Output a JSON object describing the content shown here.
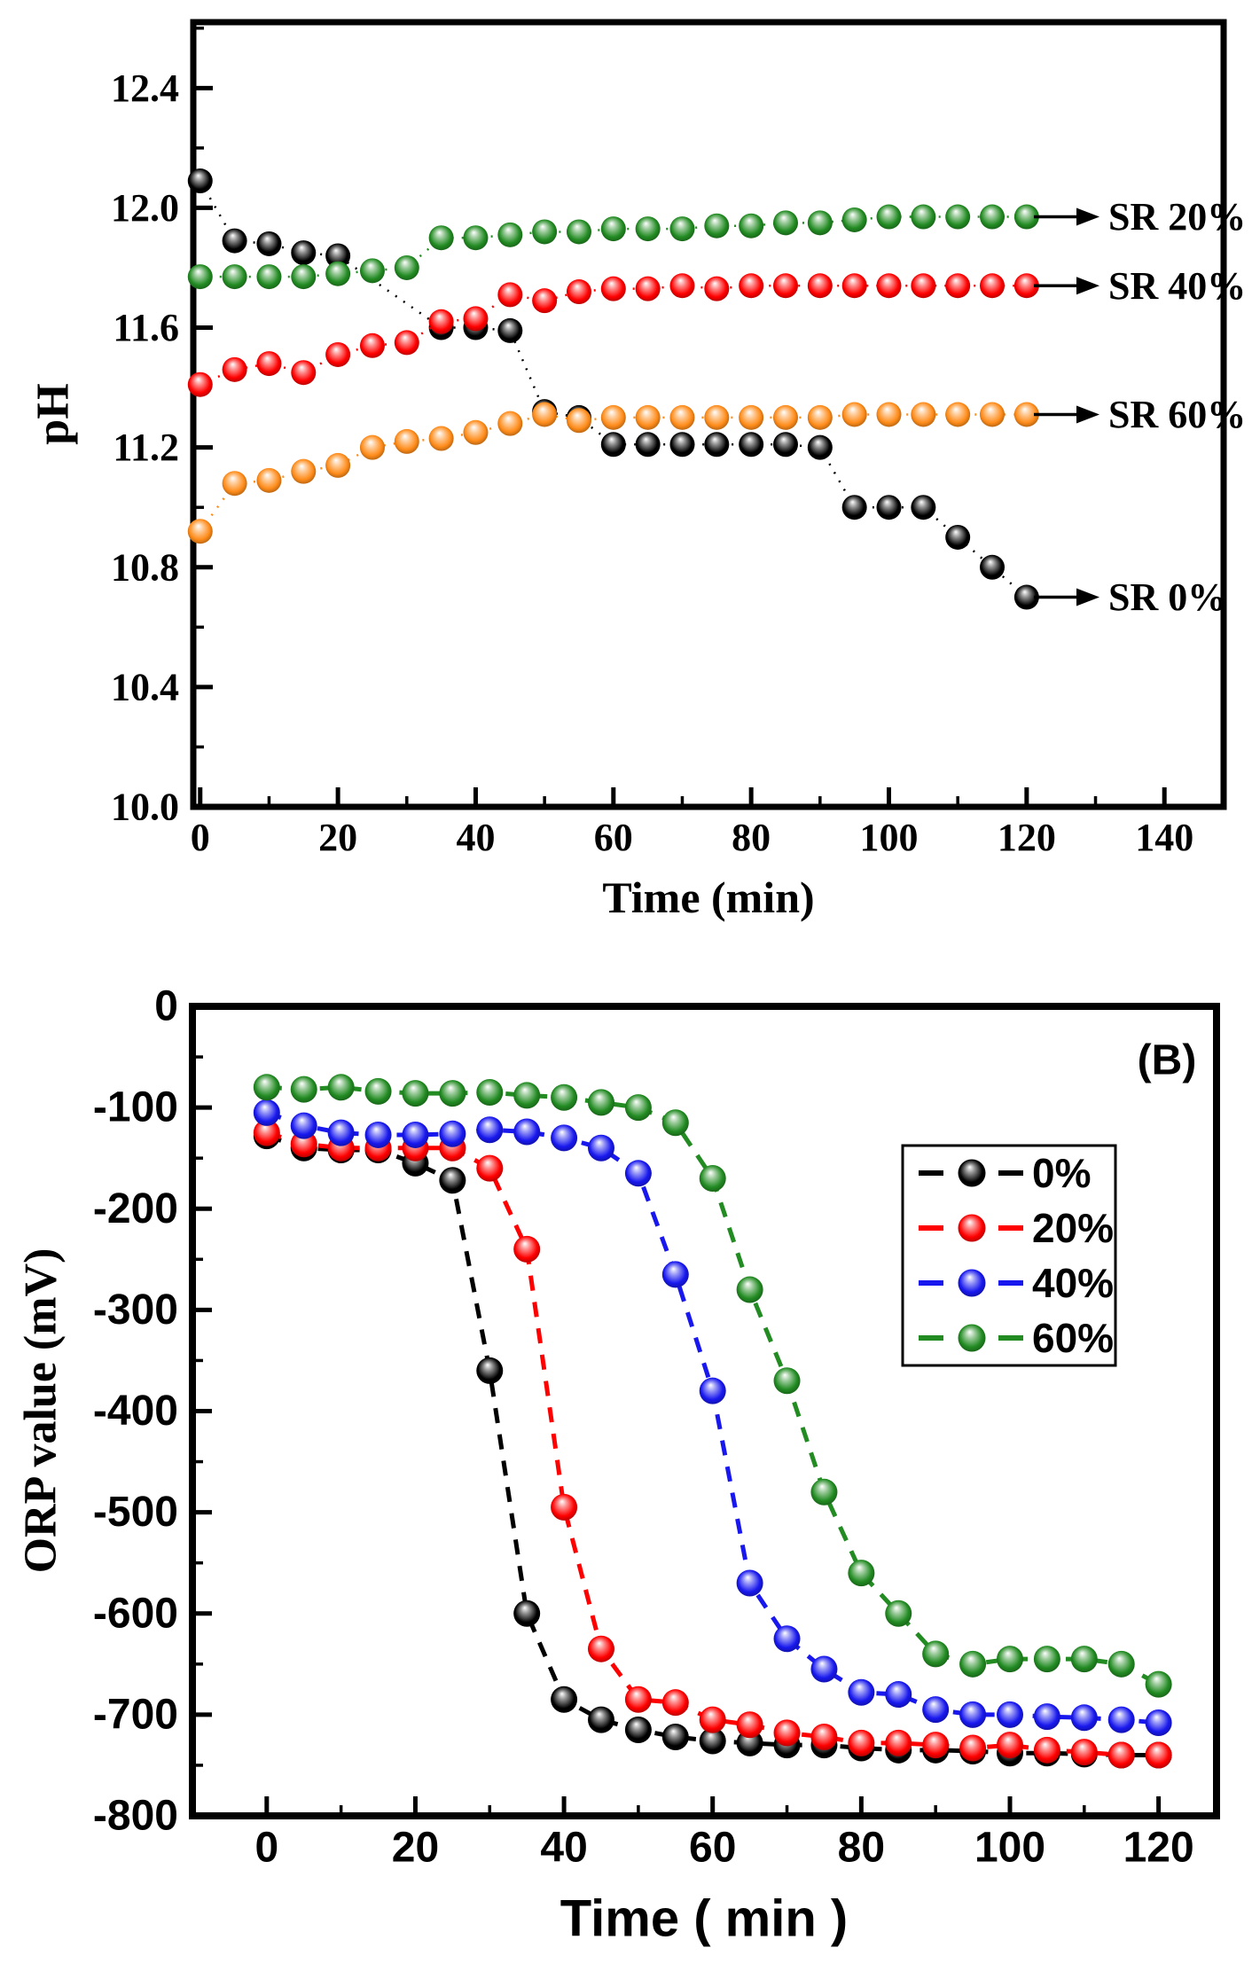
{
  "figure": {
    "panel_b_label": "(B)"
  },
  "chart_data": [
    {
      "id": "ph",
      "type": "scatter",
      "title": "",
      "xlabel": "Time (min)",
      "ylabel": "pH",
      "font": "serif",
      "xlim": [
        -1,
        148.6
      ],
      "ylim": [
        10.0,
        12.62
      ],
      "x_ticks": [
        0,
        20,
        40,
        60,
        80,
        100,
        120,
        140
      ],
      "y_ticks": [
        10.0,
        10.4,
        10.8,
        11.2,
        11.6,
        12.0,
        12.4
      ],
      "x_minor_step": 10,
      "y_minor_step": 0.2,
      "y_tick_decimals": 1,
      "grid": false,
      "marker_shine": true,
      "series": [
        {
          "name": "SR 0%",
          "color": "#000000",
          "x": [
            0,
            5,
            10,
            15,
            20,
            35,
            40,
            45,
            50,
            55,
            60,
            65,
            70,
            75,
            80,
            85,
            90,
            95,
            100,
            105,
            110,
            115,
            120
          ],
          "y": [
            12.09,
            11.89,
            11.88,
            11.85,
            11.84,
            11.6,
            11.6,
            11.59,
            11.32,
            11.3,
            11.21,
            11.21,
            11.21,
            11.21,
            11.21,
            11.21,
            11.2,
            11.0,
            11.0,
            11.0,
            10.9,
            10.8,
            10.7
          ]
        },
        {
          "name": "SR 20%",
          "color": "#228B22",
          "x": [
            0,
            5,
            10,
            15,
            20,
            25,
            30,
            35,
            40,
            45,
            50,
            55,
            60,
            65,
            70,
            75,
            80,
            85,
            90,
            95,
            100,
            105,
            110,
            115,
            120
          ],
          "y": [
            11.77,
            11.77,
            11.77,
            11.77,
            11.78,
            11.79,
            11.8,
            11.9,
            11.9,
            11.91,
            11.92,
            11.92,
            11.93,
            11.93,
            11.93,
            11.94,
            11.94,
            11.95,
            11.95,
            11.96,
            11.97,
            11.97,
            11.97,
            11.97,
            11.97
          ]
        },
        {
          "name": "SR 40%",
          "color": "#FF0000",
          "x": [
            0,
            5,
            10,
            15,
            20,
            25,
            30,
            35,
            40,
            45,
            50,
            55,
            60,
            65,
            70,
            75,
            80,
            85,
            90,
            95,
            100,
            105,
            110,
            115,
            120
          ],
          "y": [
            11.41,
            11.46,
            11.48,
            11.45,
            11.51,
            11.54,
            11.55,
            11.62,
            11.63,
            11.71,
            11.69,
            11.72,
            11.73,
            11.73,
            11.74,
            11.73,
            11.74,
            11.74,
            11.74,
            11.74,
            11.74,
            11.74,
            11.74,
            11.74,
            11.74
          ]
        },
        {
          "name": "SR 60%",
          "color": "#FF8C1A",
          "x": [
            0,
            5,
            10,
            15,
            20,
            25,
            30,
            35,
            40,
            45,
            50,
            55,
            60,
            65,
            70,
            75,
            80,
            85,
            90,
            95,
            100,
            105,
            110,
            115,
            120
          ],
          "y": [
            10.92,
            11.08,
            11.09,
            11.12,
            11.14,
            11.2,
            11.22,
            11.23,
            11.25,
            11.28,
            11.31,
            11.29,
            11.3,
            11.3,
            11.3,
            11.3,
            11.3,
            11.3,
            11.3,
            11.31,
            11.31,
            11.31,
            11.31,
            11.31,
            11.31
          ]
        }
      ],
      "annotations": [
        {
          "text": "SR 20%",
          "value": 11.97
        },
        {
          "text": "SR 40%",
          "value": 11.74
        },
        {
          "text": "SR 60%",
          "value": 11.31
        },
        {
          "text": "SR 0%",
          "value": 10.7
        }
      ]
    },
    {
      "id": "orp",
      "type": "scatter",
      "title": "",
      "panel_label": "(B)",
      "xlabel": "Time ( min )",
      "ylabel": "ORP value (mV)",
      "font": "sans",
      "ylabel_font": "serif",
      "xlim": [
        -10,
        127.8
      ],
      "ylim": [
        -800,
        0
      ],
      "x_ticks": [
        0,
        20,
        40,
        60,
        80,
        100,
        120
      ],
      "y_ticks": [
        0,
        -100,
        -200,
        -300,
        -400,
        -500,
        -600,
        -700,
        -800
      ],
      "x_minor_step": 10,
      "y_minor_step": 50,
      "y_tick_decimals": 0,
      "grid": false,
      "legend": {
        "position": "upper-right",
        "entries": [
          {
            "label": "0%",
            "color": "#000000"
          },
          {
            "label": "20%",
            "color": "#FF0000"
          },
          {
            "label": "40%",
            "color": "#1818EE"
          },
          {
            "label": "60%",
            "color": "#228B22"
          }
        ]
      },
      "series": [
        {
          "name": "0%",
          "color": "#000000",
          "x": [
            0,
            5,
            10,
            15,
            20,
            25,
            30,
            35,
            40,
            45,
            50,
            55,
            60,
            65,
            70,
            75,
            80,
            85,
            90,
            95,
            100,
            105,
            110,
            115,
            120
          ],
          "y": [
            -128,
            -140,
            -142,
            -142,
            -155,
            -172,
            -360,
            -600,
            -685,
            -705,
            -715,
            -722,
            -726,
            -728,
            -730,
            -730,
            -733,
            -735,
            -735,
            -736,
            -738,
            -738,
            -739,
            -740,
            -740
          ]
        },
        {
          "name": "20%",
          "color": "#FF0000",
          "x": [
            0,
            5,
            10,
            15,
            20,
            25,
            30,
            35,
            40,
            45,
            50,
            55,
            60,
            65,
            70,
            75,
            80,
            85,
            90,
            95,
            100,
            105,
            110,
            115,
            120
          ],
          "y": [
            -125,
            -136,
            -140,
            -140,
            -140,
            -140,
            -160,
            -240,
            -495,
            -635,
            -685,
            -688,
            -705,
            -710,
            -718,
            -722,
            -728,
            -728,
            -730,
            -733,
            -730,
            -735,
            -737,
            -740,
            -740
          ]
        },
        {
          "name": "40%",
          "color": "#1818EE",
          "x": [
            0,
            5,
            10,
            15,
            20,
            25,
            30,
            35,
            40,
            45,
            50,
            55,
            60,
            65,
            70,
            75,
            80,
            85,
            90,
            95,
            100,
            105,
            110,
            115,
            120
          ],
          "y": [
            -105,
            -118,
            -125,
            -127,
            -127,
            -126,
            -122,
            -124,
            -130,
            -140,
            -165,
            -265,
            -380,
            -570,
            -625,
            -655,
            -678,
            -680,
            -695,
            -700,
            -700,
            -702,
            -703,
            -705,
            -708
          ]
        },
        {
          "name": "60%",
          "color": "#228B22",
          "x": [
            0,
            5,
            10,
            15,
            20,
            25,
            30,
            35,
            40,
            45,
            50,
            55,
            60,
            65,
            70,
            75,
            80,
            85,
            90,
            95,
            100,
            105,
            110,
            115,
            120
          ],
          "y": [
            -80,
            -82,
            -80,
            -84,
            -86,
            -86,
            -85,
            -88,
            -90,
            -95,
            -100,
            -115,
            -170,
            -280,
            -370,
            -480,
            -560,
            -600,
            -640,
            -650,
            -645,
            -645,
            -645,
            -650,
            -670
          ]
        }
      ]
    }
  ]
}
